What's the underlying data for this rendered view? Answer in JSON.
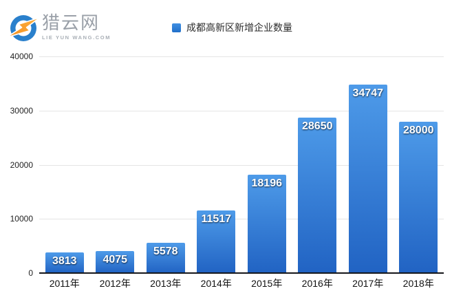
{
  "logo": {
    "brand_name": "猎云网",
    "brand_domain": "LIE YUN WANG.COM",
    "icon": "lightning-bolt-circle",
    "colors": {
      "circle": "#2a80cc",
      "bolt_top": "#fbb040",
      "bolt_bottom": "#f78f1e",
      "text": "#9aa0a8"
    }
  },
  "legend": {
    "label": "成都高新区新增企业数量",
    "swatch_color": "#2f7fd2"
  },
  "chart_data": {
    "type": "bar",
    "title": "",
    "xlabel": "",
    "ylabel": "",
    "categories": [
      "2011年",
      "2012年",
      "2013年",
      "2014年",
      "2015年",
      "2016年",
      "2017年",
      "2018年"
    ],
    "values": [
      3813,
      4075,
      5578,
      11517,
      18196,
      28650,
      34747,
      28000
    ],
    "legend_entries": [
      "成都高新区新增企业数量"
    ],
    "ylim": [
      0,
      40000
    ],
    "yticks": [
      0,
      10000,
      20000,
      30000,
      40000
    ],
    "ytick_labels": [
      "0",
      "10000",
      "20000",
      "30000",
      "40000"
    ],
    "grid": true,
    "legend_position": "top-center",
    "bar_color_top": "#4e9be9",
    "bar_color_bottom": "#2163c3",
    "value_label_color": "#ffffff"
  }
}
